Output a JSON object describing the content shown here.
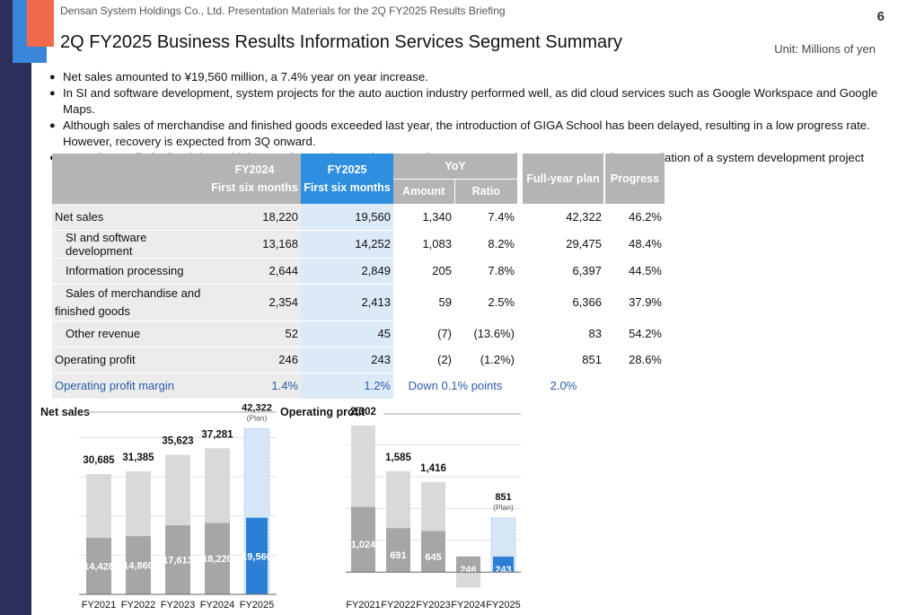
{
  "header": {
    "company": "Densan System Holdings Co., Ltd. Presentation Materials for the 2Q FY2025 Results Briefing",
    "page_number": "6",
    "title": "2Q FY2025 Business Results Information Services Segment Summary",
    "unit": "Unit: Millions of yen"
  },
  "bullets": [
    "Net sales amounted to ¥19,560 million, a 7.4% year on year increase.",
    "In SI and software development, system projects for the auto auction industry performed well, as did cloud services such as Google Workspace and Google Maps.",
    "Although sales of merchandise and finished goods exceeded last year, the introduction of GIGA School has been delayed, resulting in a low progress rate. However, recovery is expected from 3Q onward.",
    "Operating profit declined due to higher purchase prices and personnel expenses, new investments, and the cancellation of a system development project contract."
  ],
  "table": {
    "headers": {
      "fy2024_line1": "FY2024",
      "fy2024_line2": "First six months",
      "fy2025_line1": "FY2025",
      "fy2025_line2": "First six months",
      "yoy": "YoY",
      "amount": "Amount",
      "ratio": "Ratio",
      "plan": "Full-year plan",
      "progress": "Progress"
    },
    "rows": [
      {
        "label": "Net sales",
        "fy2024": "18,220",
        "fy2025": "19,560",
        "amount": "1,340",
        "ratio": "7.4%",
        "plan": "42,322",
        "progress": "46.2%"
      },
      {
        "label": "SI and software development",
        "fy2024": "13,168",
        "fy2025": "14,252",
        "amount": "1,083",
        "ratio": "8.2%",
        "plan": "29,475",
        "progress": "48.4%"
      },
      {
        "label": "Information processing",
        "fy2024": "2,644",
        "fy2025": "2,849",
        "amount": "205",
        "ratio": "7.8%",
        "plan": "6,397",
        "progress": "44.5%"
      },
      {
        "label": "Sales of merchandise and finished goods",
        "fy2024": "2,354",
        "fy2025": "2,413",
        "amount": "59",
        "ratio": "2.5%",
        "plan": "6,366",
        "progress": "37.9%"
      },
      {
        "label": "Other revenue",
        "fy2024": "52",
        "fy2025": "45",
        "amount": "(7)",
        "ratio": "(13.6%)",
        "plan": "83",
        "progress": "54.2%"
      },
      {
        "label": "Operating profit",
        "fy2024": "246",
        "fy2025": "243",
        "amount": "(2)",
        "ratio": "(1.2%)",
        "plan": "851",
        "progress": "28.6%"
      },
      {
        "label": "Operating profit margin",
        "fy2024": "1.4%",
        "fy2025": "1.2%",
        "yoy_text": "Down 0.1% points",
        "plan": "2.0%",
        "progress": ""
      }
    ]
  },
  "chart_data": [
    {
      "type": "bar",
      "title": "Net sales",
      "categories": [
        "FY2021",
        "FY2022",
        "FY2023",
        "FY2024",
        "FY2025"
      ],
      "series": [
        {
          "values": [
            30685,
            31385,
            35623,
            37281,
            42322
          ]
        },
        {
          "values": [
            14428,
            14860,
            17613,
            18220,
            19560
          ]
        }
      ],
      "labels_full": [
        "30,685",
        "31,385",
        "35,623",
        "37,281",
        "42,322"
      ],
      "labels_half": [
        "14,428",
        "14,860",
        "17,613",
        "18,220",
        "19,560"
      ],
      "plan_note": "(Plan)",
      "ylim": [
        0,
        44000
      ],
      "colors": {
        "full_year": "#d9d9d9",
        "first_half": "#a6a6a6",
        "current_half": "#2d7fd6",
        "plan": "#d6e6f7"
      }
    },
    {
      "type": "bar",
      "title": "Operating profit",
      "categories": [
        "FY2021",
        "FY2022",
        "FY2023",
        "FY2024",
        "FY2025"
      ],
      "series": [
        {
          "values": [
            2302,
            1585,
            1416,
            -246,
            851
          ]
        },
        {
          "values": [
            1024,
            691,
            645,
            246,
            243
          ]
        }
      ],
      "labels_full": [
        "2,302",
        "1,585",
        "1,416",
        "",
        "851"
      ],
      "labels_half": [
        "1,024",
        "691",
        "645",
        "246",
        "243"
      ],
      "plan_note": "(Plan)",
      "ylim": [
        -350,
        2500
      ],
      "colors": {
        "full_year": "#d9d9d9",
        "first_half": "#a6a6a6",
        "current_half": "#2d7fd6",
        "plan": "#d6e6f7"
      }
    }
  ]
}
